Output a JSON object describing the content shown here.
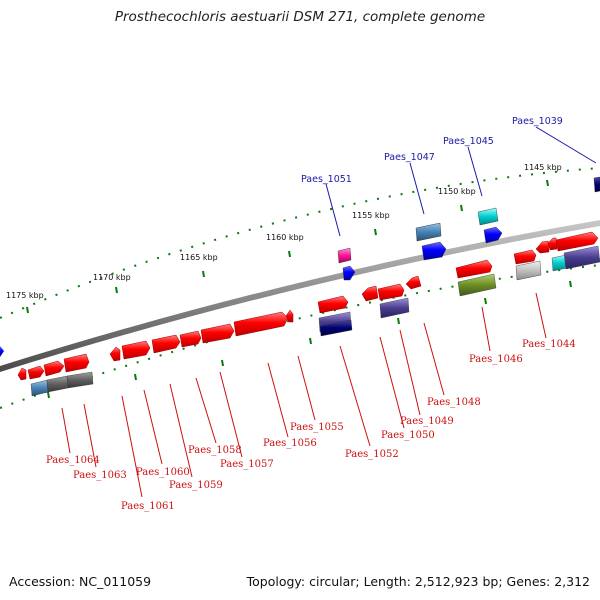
{
  "title": "Prosthecochloris aestuarii DSM 271, complete genome",
  "accession": "Accession: NC_011059",
  "summary": "Topology: circular; Length: 2,512,923 bp; Genes: 2,312",
  "scale_labels": [
    "1175 kbp",
    "1170 kbp",
    "1165 kbp",
    "1160 kbp",
    "1155 kbp",
    "1150 kbp",
    "1145 kbp"
  ],
  "genes_top": [
    "Paes_1039",
    "Paes_1045",
    "Paes_1047",
    "Paes_1051"
  ],
  "genes_bottom": [
    "Paes_1044",
    "Paes_1046",
    "Paes_1048",
    "Paes_1049",
    "Paes_1050",
    "Paes_1052",
    "Paes_1055",
    "Paes_1056",
    "Paes_1057",
    "Paes_1058",
    "Paes_1059",
    "Paes_1060",
    "Paes_1061",
    "Paes_1063",
    "Paes_1064"
  ],
  "colors": {
    "forward_gene": "#ff0000",
    "reverse_gene": "#0000ff",
    "backbone": "#808080",
    "scale_tick": "#0a7a0a",
    "top_label": "#1a1aa8",
    "bottom_label": "#cc1111"
  }
}
